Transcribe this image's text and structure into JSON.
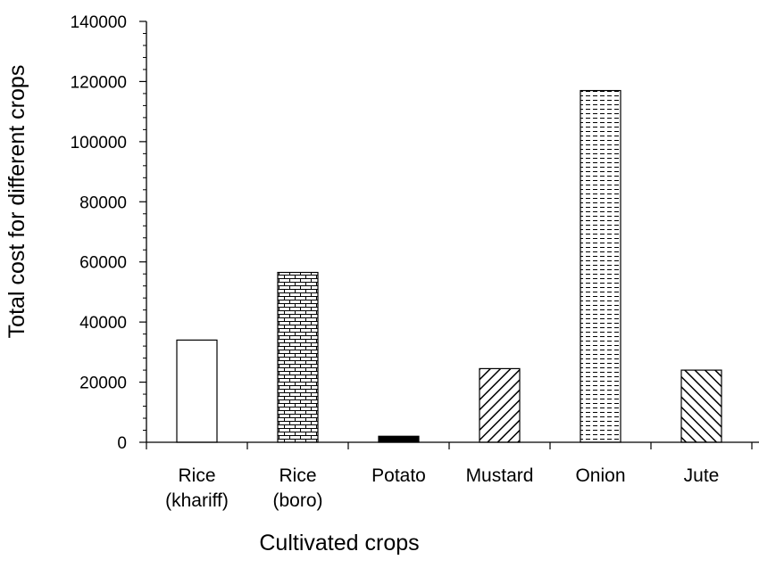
{
  "chart_data": {
    "type": "bar",
    "title": "",
    "xlabel": "Cultivated crops",
    "ylabel": "Total cost for different crops",
    "ylim": [
      0,
      140000
    ],
    "yticks": [
      0,
      20000,
      40000,
      60000,
      80000,
      100000,
      120000,
      140000
    ],
    "grid": false,
    "legend": "none",
    "categories": [
      {
        "lines": [
          "Rice",
          "(khariff)"
        ],
        "value": 34000,
        "pattern": "none"
      },
      {
        "lines": [
          "Rice",
          "(boro)"
        ],
        "value": 56500,
        "pattern": "brick"
      },
      {
        "lines": [
          "Potato"
        ],
        "value": 2000,
        "pattern": "solid-black"
      },
      {
        "lines": [
          "Mustard"
        ],
        "value": 24500,
        "pattern": "diagonal-up"
      },
      {
        "lines": [
          "Onion"
        ],
        "value": 117000,
        "pattern": "dashed-horizontal"
      },
      {
        "lines": [
          "Jute"
        ],
        "value": 24000,
        "pattern": "diagonal-down"
      }
    ]
  }
}
